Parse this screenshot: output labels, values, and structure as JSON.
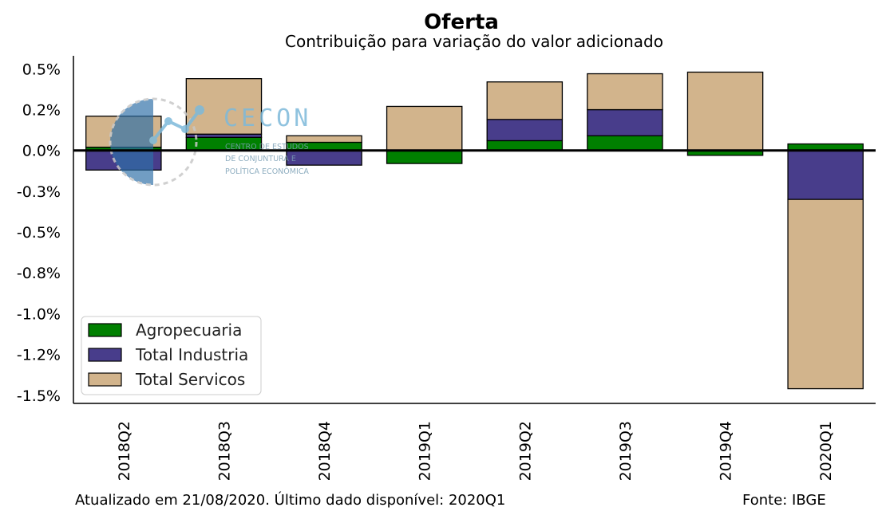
{
  "chart_data": {
    "type": "bar",
    "stacked": true,
    "title": "Oferta",
    "subtitle": "Contribuição para variação do valor adicionado",
    "categories": [
      "2018Q2",
      "2018Q3",
      "2018Q4",
      "2019Q1",
      "2019Q2",
      "2019Q3",
      "2019Q4",
      "2020Q1"
    ],
    "series": [
      {
        "name": "Agropecuaria",
        "color": "#008000",
        "values": [
          0.02,
          0.08,
          0.05,
          -0.08,
          0.06,
          0.09,
          -0.03,
          0.04
        ]
      },
      {
        "name": "Total Industria",
        "color": "#483d8b",
        "values": [
          -0.12,
          0.02,
          -0.09,
          0.0,
          0.13,
          0.16,
          0.0,
          -0.3
        ]
      },
      {
        "name": "Total Servicos",
        "color": "#d2b48c",
        "values": [
          0.19,
          0.34,
          0.04,
          0.27,
          0.23,
          0.22,
          0.48,
          -1.16
        ]
      }
    ],
    "yticks": [
      0.5,
      0.25,
      0.0,
      -0.25,
      -0.5,
      -0.75,
      -1.0,
      -1.25,
      -1.5
    ],
    "ytick_labels": [
      "0.5%",
      "0.2%",
      "0.0%",
      "-0.3%",
      "-0.5%",
      "-0.8%",
      "-1.0%",
      "-1.2%",
      "-1.5%"
    ],
    "ylim": [
      -1.55,
      0.58
    ],
    "grid": false,
    "legend_position": "lower-left",
    "xlabel": "",
    "ylabel": ""
  },
  "footer": {
    "updated": "Atualizado em 21/08/2020. Último dado disponível: 2020Q1",
    "source": "Fonte: IBGE"
  },
  "logo": {
    "name": "CECON",
    "subtitle_lines": [
      "CENTRO DE ESTUDOS",
      "DE CONJUNTURA E",
      "POLÍTICA ECONÔMICA"
    ]
  }
}
